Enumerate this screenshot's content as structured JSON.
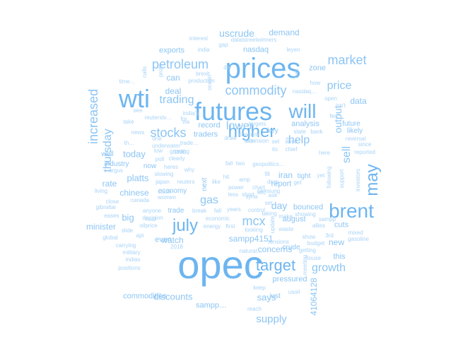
{
  "palette": {
    "light": "#a8d3f7",
    "mid": "#8cc5f4",
    "strong": "#6db5f0"
  },
  "words": [
    "opec",
    "prices",
    "futures",
    "wti",
    "brent",
    "will",
    "higher",
    "july",
    "target",
    "may",
    "commodity",
    "increased",
    "petroleum",
    "stocks",
    "market",
    "trading",
    "mcx",
    "gas",
    "growth",
    "lower",
    "uscrude",
    "thursday",
    "supply",
    "price",
    "help",
    "sell",
    "output",
    "today",
    "platts",
    "day",
    "big",
    "demand",
    "discounts",
    "sampp4151",
    "concerns",
    "rate",
    "data",
    "new",
    "chinese",
    "commodities",
    "nasdaq",
    "exports",
    "report",
    "pressured",
    "deal",
    "record",
    "traders",
    "cuts",
    "minister",
    "iran",
    "can",
    "zone",
    "august",
    "analysis",
    "even",
    "india",
    "interest",
    "dalalstreetwinners",
    "gap",
    "leyen",
    "brexit",
    "production",
    "calls",
    "profit",
    "time…",
    "how",
    "isn't",
    "open",
    "see",
    "take",
    "reuterstv…",
    "india's",
    "via",
    "news",
    "one",
    "th…",
    "trade…",
    "concern",
    "draw",
    "its",
    "state",
    "bank",
    "likely",
    "future",
    "well",
    "underwater",
    "low",
    "growing",
    "extension",
    "key",
    "chief",
    "here",
    "reported",
    "industry",
    "now",
    "heres",
    "clearly",
    "3930",
    "two",
    "geopolitics…",
    "tight",
    "yet",
    "argus",
    "slowing",
    "poll",
    "japan",
    "reuters",
    "why",
    "power",
    "fill",
    "chart",
    "drop",
    "get",
    "following",
    "support",
    "investors",
    "living",
    "gibraltar",
    "eases",
    "slide",
    "api",
    "global",
    "carrying",
    "2018",
    "military",
    "indias",
    "positions",
    "close",
    "canada",
    "economy",
    "women",
    "trade",
    "break",
    "fall",
    "years",
    "control",
    "set",
    "anyone",
    "oilprice",
    "hold",
    "decision",
    "south",
    "economic",
    "first",
    "energy",
    "looking",
    "waste",
    "update",
    "tensions",
    "budget",
    "getting",
    "meeting",
    "house",
    "natural…",
    "mixed",
    "gasoline",
    "keep",
    "says",
    "just",
    "usoil",
    "41064128",
    "reach",
    "sampp…",
    "watch",
    "3rd",
    "this",
    "show",
    "bounced",
    "allies",
    "sampp",
    "crude",
    "taking",
    "make",
    "showing",
    "short",
    "syria",
    "samsung",
    "ucc",
    "next",
    "hit",
    "amp",
    "like",
    "ask",
    "since",
    "reversal",
    "fed",
    "set",
    "ocean",
    "der",
    "von",
    "for",
    "amid",
    "less",
    "it",
    "targets",
    "nasdaq…",
    "nas",
    "fall",
    "kek",
    "oil",
    "its",
    "deal"
  ]
}
